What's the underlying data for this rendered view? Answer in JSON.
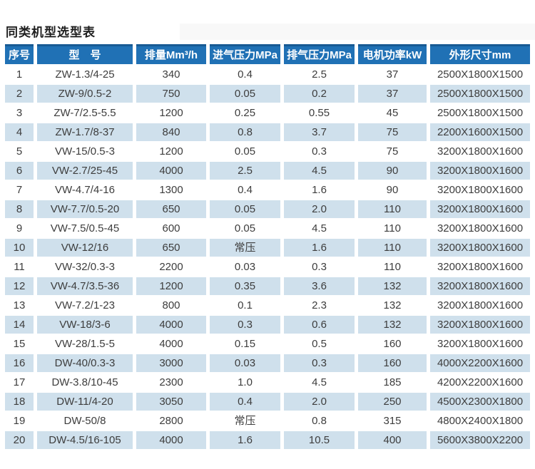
{
  "page": {
    "title": "同类机型选型表"
  },
  "colors": {
    "header_bg": "#2071b5",
    "header_top_border": "#185a94",
    "stripe_bg": "#cfe0ec",
    "header_text": "#ffffff",
    "body_text": "#3d3d3d"
  },
  "table": {
    "headers": [
      "序号",
      "型　号",
      "排量Mm³/h",
      "进气压力MPa",
      "排气压力MPa",
      "电机功率kW",
      "外形尺寸mm"
    ],
    "rows": [
      [
        "1",
        "ZW-1.3/4-25",
        "340",
        "0.4",
        "2.5",
        "37",
        "2500X1800X1500"
      ],
      [
        "2",
        "ZW-9/0.5-2",
        "750",
        "0.05",
        "0.2",
        "37",
        "2500X1800X1500"
      ],
      [
        "3",
        "ZW-7/2.5-5.5",
        "1200",
        "0.25",
        "0.55",
        "45",
        "2500X1800X1500"
      ],
      [
        "4",
        "ZW-1.7/8-37",
        "840",
        "0.8",
        "3.7",
        "75",
        "2200X1600X1500"
      ],
      [
        "5",
        "VW-15/0.5-3",
        "1200",
        "0.05",
        "0.3",
        "75",
        "3200X1800X1600"
      ],
      [
        "6",
        "VW-2.7/25-45",
        "4000",
        "2.5",
        "4.5",
        "90",
        "3200X1800X1600"
      ],
      [
        "7",
        "VW-4.7/4-16",
        "1300",
        "0.4",
        "1.6",
        "90",
        "3200X1800X1600"
      ],
      [
        "8",
        "VW-7.7/0.5-20",
        "650",
        "0.05",
        "2.0",
        "110",
        "3200X1800X1600"
      ],
      [
        "9",
        "VW-7.5/0.5-45",
        "600",
        "0.05",
        "4.5",
        "110",
        "3200X1800X1600"
      ],
      [
        "10",
        "VW-12/16",
        "650",
        "常压",
        "1.6",
        "110",
        "3200X1800X1600"
      ],
      [
        "11",
        "VW-32/0.3-3",
        "2200",
        "0.03",
        "0.3",
        "110",
        "3200X1800X1600"
      ],
      [
        "12",
        "VW-4.7/3.5-36",
        "1200",
        "0.35",
        "3.6",
        "132",
        "3200X1800X1600"
      ],
      [
        "13",
        "VW-7.2/1-23",
        "800",
        "0.1",
        "2.3",
        "132",
        "3200X1800X1600"
      ],
      [
        "14",
        "VW-18/3-6",
        "4000",
        "0.3",
        "0.6",
        "132",
        "3200X1800X1600"
      ],
      [
        "15",
        "VW-28/1.5-5",
        "4000",
        "0.15",
        "0.5",
        "160",
        "3200X1800X1600"
      ],
      [
        "16",
        "DW-40/0.3-3",
        "3000",
        "0.03",
        "0.3",
        "160",
        "4000X2200X1600"
      ],
      [
        "17",
        "DW-3.8/10-45",
        "2300",
        "1.0",
        "4.5",
        "185",
        "4200X2200X1600"
      ],
      [
        "18",
        "DW-11/4-20",
        "3050",
        "0.4",
        "2.0",
        "250",
        "4500X2300X1800"
      ],
      [
        "19",
        "DW-50/8",
        "2800",
        "常压",
        "0.8",
        "315",
        "4800X2400X1800"
      ],
      [
        "20",
        "DW-4.5/16-105",
        "4000",
        "1.6",
        "10.5",
        "400",
        "5600X3800X2200"
      ]
    ]
  }
}
